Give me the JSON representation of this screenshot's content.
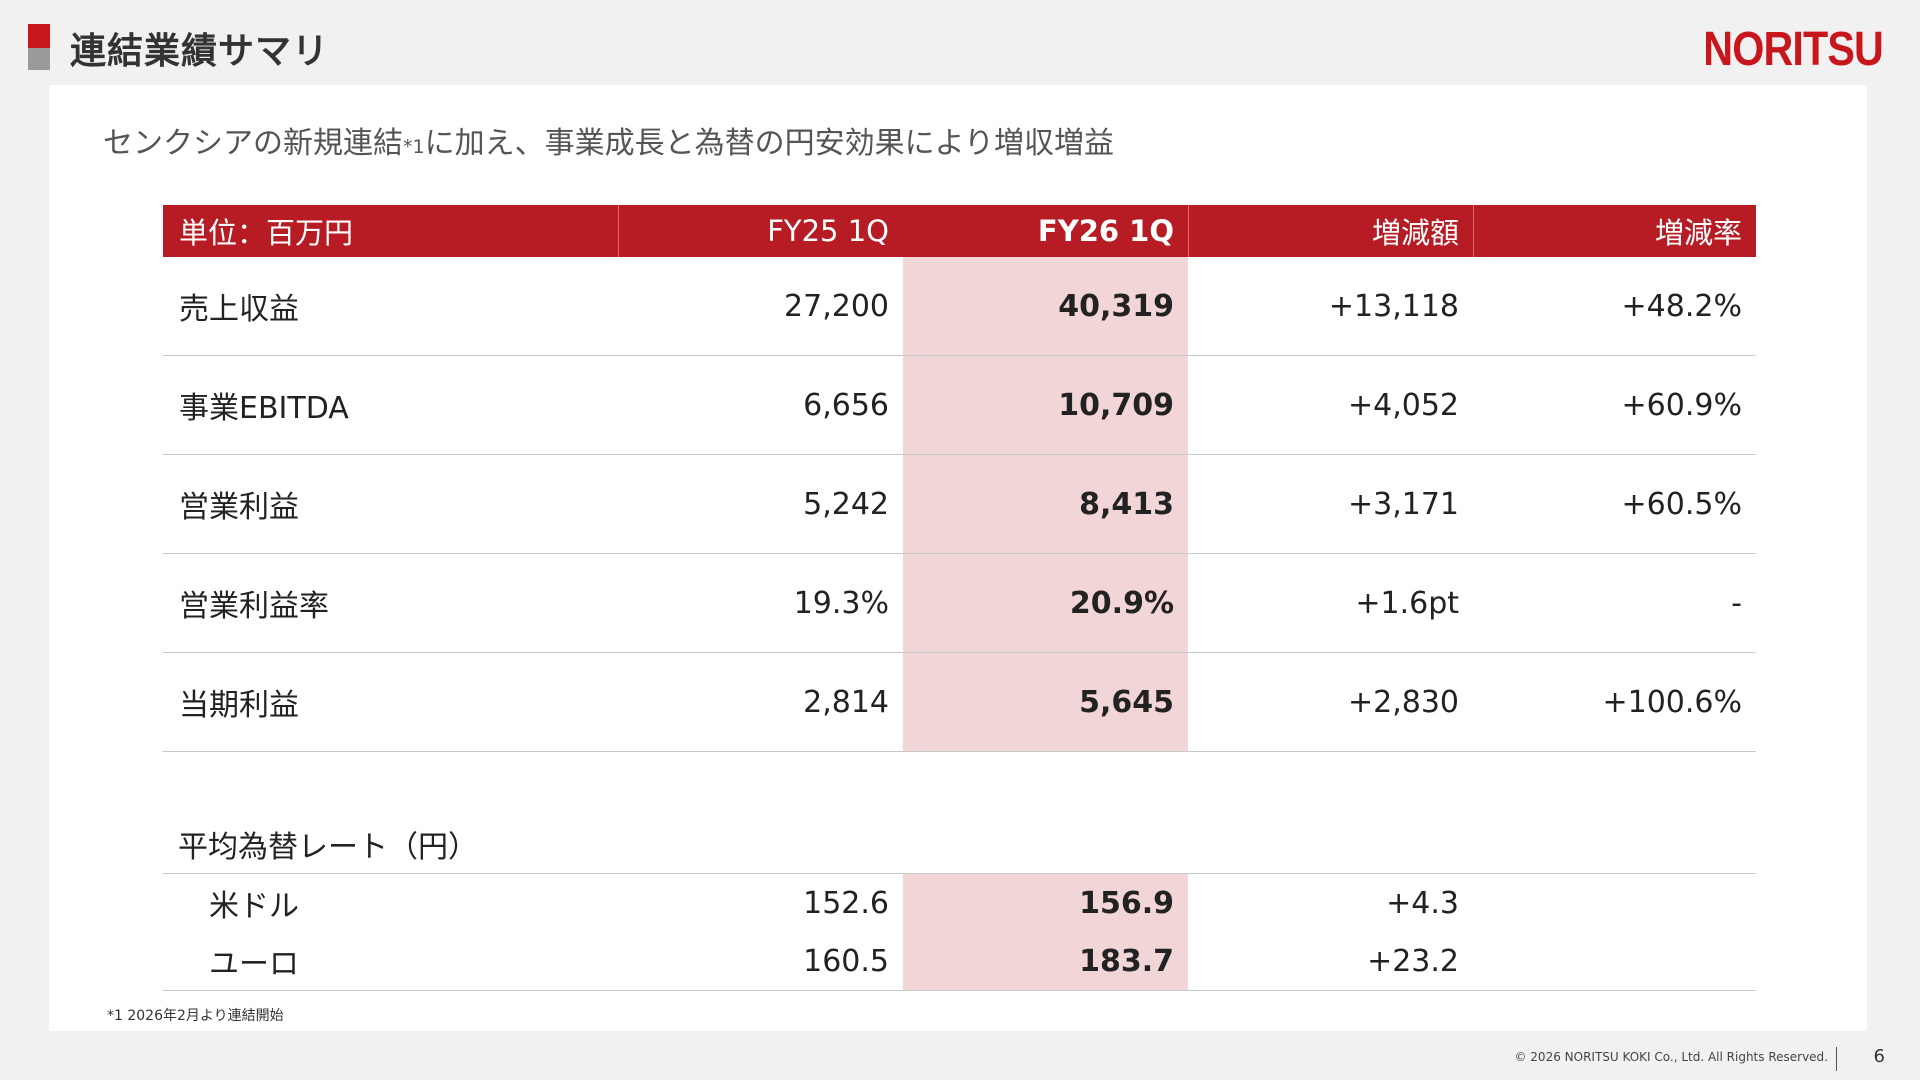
{
  "header": {
    "title": "連結業績サマリ",
    "logo_text": "NORITSU"
  },
  "subtitle": {
    "text_before": "センクシアの新規連結",
    "note_mark": "*1",
    "text_after": "に加え、事業成長と為替の円安効果により増収増益"
  },
  "table": {
    "headers": [
      "単位：百万円",
      "FY25 1Q",
      "FY26 1Q",
      "増減額",
      "増減率"
    ],
    "rows": [
      {
        "label": "売上収益",
        "fy25": "27,200",
        "fy26": "40,319",
        "diff": "+13,118",
        "rate": "+48.2%"
      },
      {
        "label": "事業EBITDA",
        "fy25": "6,656",
        "fy26": "10,709",
        "diff": "+4,052",
        "rate": "+60.9%"
      },
      {
        "label": "営業利益",
        "fy25": "5,242",
        "fy26": "8,413",
        "diff": "+3,171",
        "rate": "+60.5%"
      },
      {
        "label": "営業利益率",
        "fy25": "19.3%",
        "fy26": "20.9%",
        "diff": "+1.6pt",
        "rate": "-"
      },
      {
        "label": "当期利益",
        "fy25": "2,814",
        "fy26": "5,645",
        "diff": "+2,830",
        "rate": "+100.6%"
      }
    ]
  },
  "fx": {
    "title": "平均為替レート（円）",
    "rows": [
      {
        "label": "米ドル",
        "fy25": "152.6",
        "fy26": "156.9",
        "diff": "+4.3"
      },
      {
        "label": "ユーロ",
        "fy25": "160.5",
        "fy26": "183.7",
        "diff": "+23.2"
      }
    ]
  },
  "footnote": "*1 2026年2月より連結開始",
  "footer": {
    "copyright": "© 2026 NORITSU KOKI Co., Ltd. All Rights Reserved.",
    "page_number": "6"
  },
  "colors": {
    "brand_red": "#c8161d",
    "header_red": "#b71c24",
    "highlight_pink": "#f2d5d6"
  }
}
